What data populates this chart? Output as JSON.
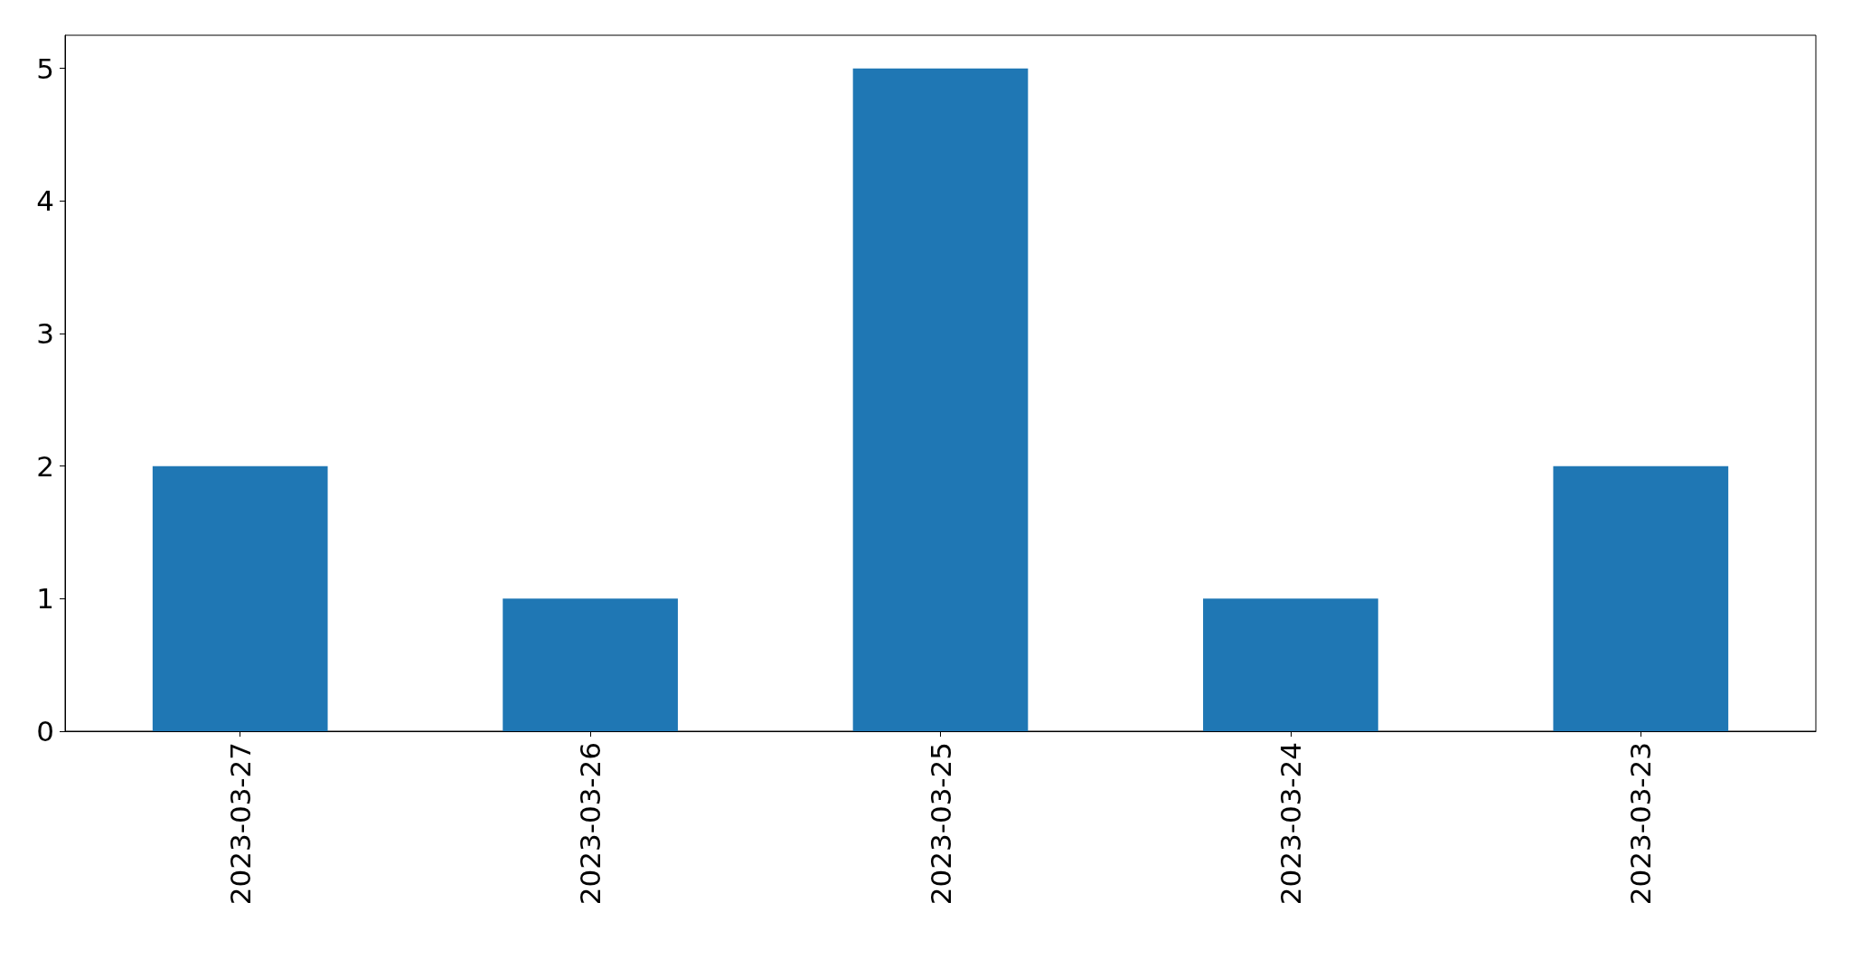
{
  "chart_data": {
    "type": "bar",
    "categories": [
      "2023-03-27",
      "2023-03-26",
      "2023-03-25",
      "2023-03-24",
      "2023-03-23"
    ],
    "values": [
      2,
      1,
      5,
      1,
      2
    ],
    "color": "#1f77b4",
    "ylim": [
      0,
      5.25
    ],
    "yticks": [
      0,
      1,
      2,
      3,
      4,
      5
    ]
  }
}
